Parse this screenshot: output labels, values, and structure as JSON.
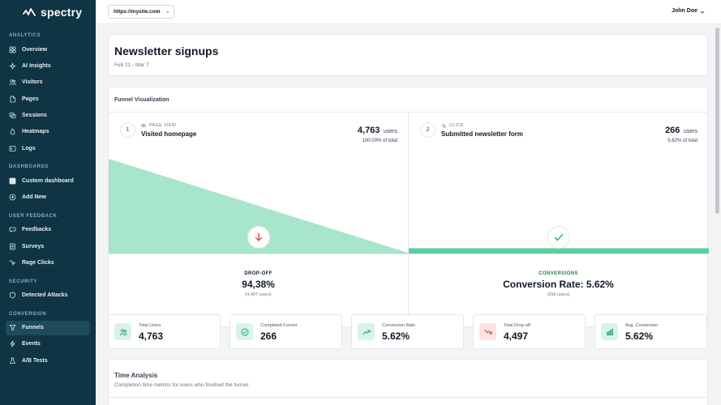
{
  "app": {
    "name": "spectry"
  },
  "sidebar": {
    "sections": [
      {
        "label": "ANALYTICS",
        "items": [
          {
            "label": "Overview",
            "icon": "grid-icon"
          },
          {
            "label": "AI Insights",
            "icon": "sparkle-icon"
          },
          {
            "label": "Visitors",
            "icon": "users-icon"
          },
          {
            "label": "Pages",
            "icon": "file-icon"
          },
          {
            "label": "Sessions",
            "icon": "sessions-icon"
          },
          {
            "label": "Heatmaps",
            "icon": "flame-icon"
          },
          {
            "label": "Logs",
            "icon": "terminal-icon"
          }
        ]
      },
      {
        "label": "DASHBOARDS",
        "items": [
          {
            "label": "Custom dashboard",
            "icon": "dashboard-icon"
          },
          {
            "label": "Add New",
            "icon": "plus-circle-icon"
          }
        ]
      },
      {
        "label": "USER FEEDBACK",
        "items": [
          {
            "label": "Feedbacks",
            "icon": "chat-icon"
          },
          {
            "label": "Surveys",
            "icon": "survey-icon"
          },
          {
            "label": "Rage Clicks",
            "icon": "cursor-click-icon"
          }
        ]
      },
      {
        "label": "SECURITY",
        "items": [
          {
            "label": "Detected Attacks",
            "icon": "shield-icon"
          }
        ]
      },
      {
        "label": "CONVERSION",
        "items": [
          {
            "label": "Funnels",
            "icon": "funnel-icon",
            "active": true
          },
          {
            "label": "Events",
            "icon": "bolt-icon"
          },
          {
            "label": "A/B Tests",
            "icon": "flask-icon"
          }
        ]
      }
    ]
  },
  "header": {
    "site": "https://mysite.com",
    "user": "John Doe"
  },
  "page": {
    "title": "Newsletter signups",
    "date_range": "Feb 21 - Mar 7"
  },
  "funnel": {
    "title": "Funnel Visualization",
    "steps": [
      {
        "num": "1",
        "type": "PAGE VIEW",
        "name": "Visited homepage",
        "users": "4,763",
        "unit": "users",
        "pct": "100.00% of total",
        "fill_fraction": 1.0
      },
      {
        "num": "2",
        "type": "CLICK",
        "name": "Submitted newsletter form",
        "users": "266",
        "unit": "users",
        "pct": "5.62% of total",
        "fill_fraction": 0.0562
      }
    ],
    "dropoff": {
      "label": "DROP-OFF",
      "value": "94,38%",
      "sub": "(4,497 users)"
    },
    "conversion": {
      "label": "CONVERSIONS",
      "value": "Conversion Rate: 5.62%",
      "sub": "(266 users)"
    }
  },
  "metrics": [
    {
      "label": "Total Users",
      "value": "4,763",
      "icon": "users-icon",
      "bg": "#d8f3e8",
      "fg": "#1f9d6b"
    },
    {
      "label": "Completed Funnel",
      "value": "266",
      "icon": "check-circle-icon",
      "bg": "#d8f3e8",
      "fg": "#1f9d6b"
    },
    {
      "label": "Conversion Rate",
      "value": "5.62%",
      "icon": "trending-up-icon",
      "bg": "#d8f3e8",
      "fg": "#1f9d6b"
    },
    {
      "label": "Total Drop-off",
      "value": "4,497",
      "icon": "trending-down-icon",
      "bg": "#fde2e2",
      "fg": "#c0392b"
    },
    {
      "label": "Avg. Conversion",
      "value": "5.62%",
      "icon": "bar-chart-icon",
      "bg": "#d8f3e8",
      "fg": "#1f9d6b"
    }
  ],
  "time_analysis": {
    "title": "Time Analysis",
    "subtitle": "Completion time metrics for users who finished the funnel"
  },
  "colors": {
    "sidebar": "#0f3443",
    "accent": "#5ccf9f",
    "accent_light": "#a8e6cc",
    "danger": "#c0392b",
    "success_text": "#1f7a55"
  }
}
